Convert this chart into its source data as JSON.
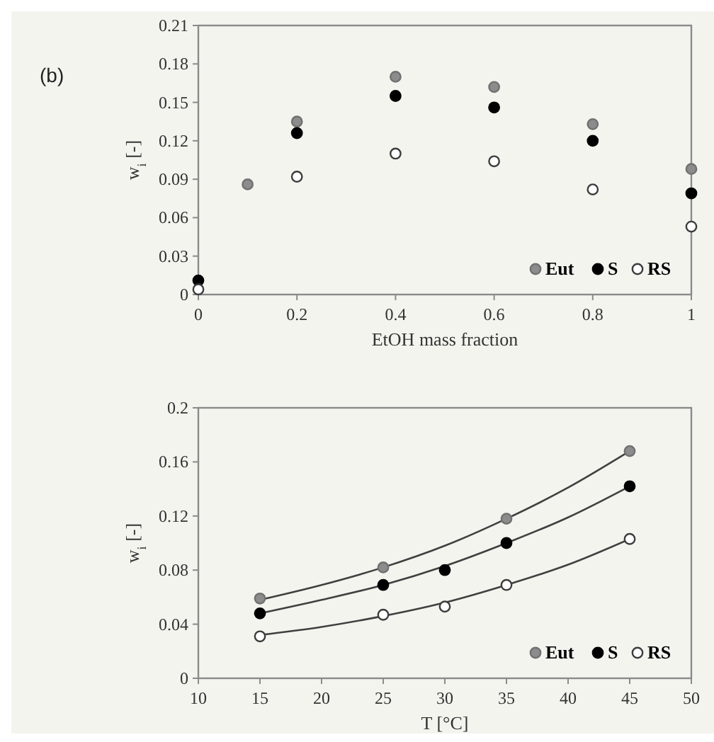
{
  "chart_data": [
    {
      "type": "scatter",
      "xlabel": "EtOH mass fraction",
      "ylabel": "w$_{i}$ [-]",
      "annotations": [
        "(b)"
      ],
      "xlim": [
        0,
        1
      ],
      "xticks": [
        0,
        0.2,
        0.4,
        0.6,
        0.8,
        1
      ],
      "ylim": [
        0,
        0.21
      ],
      "yticks": [
        0,
        0.03,
        0.06,
        0.09,
        0.12,
        0.15,
        0.18,
        0.21
      ],
      "legend": "bottom right",
      "marker": "circle",
      "grid": false,
      "series": [
        {
          "name": "Eut",
          "color": "#8c8c8c",
          "x": [
            0.1,
            0.2,
            0.4,
            0.6,
            0.8,
            1
          ],
          "values": [
            0.086,
            0.135,
            0.17,
            0.162,
            0.133,
            0.098
          ]
        },
        {
          "name": "S",
          "color": "#000000",
          "x": [
            0,
            0.2,
            0.4,
            0.6,
            0.8,
            1
          ],
          "values": [
            0.011,
            0.126,
            0.155,
            0.146,
            0.12,
            0.079
          ]
        },
        {
          "name": "RS",
          "color": "#ffffff",
          "x": [
            0,
            0.2,
            0.4,
            0.6,
            0.8,
            1
          ],
          "values": [
            0.004,
            0.092,
            0.11,
            0.104,
            0.082,
            0.053
          ]
        }
      ]
    },
    {
      "type": "scatter",
      "xlabel": "T [°C]",
      "ylabel": "w$_{i}$ [-]",
      "xlim": [
        10,
        50
      ],
      "xticks": [
        10,
        15,
        20,
        25,
        30,
        35,
        40,
        45,
        50
      ],
      "ylim": [
        0,
        0.2
      ],
      "yticks": [
        0,
        0.04,
        0.08,
        0.12,
        0.16,
        0.2
      ],
      "legend": "bottom right",
      "marker": "circle",
      "grid": false,
      "series": [
        {
          "type": "line",
          "marker": "none",
          "color": "#404040",
          "x": [
            15,
            20,
            25,
            30,
            35,
            40,
            45
          ],
          "values": [
            0.058,
            0.069,
            0.082,
            0.098,
            0.118,
            0.141,
            0.168
          ]
        },
        {
          "type": "line",
          "marker": "none",
          "color": "#404040",
          "x": [
            15,
            20,
            25,
            30,
            35,
            40,
            45
          ],
          "values": [
            0.048,
            0.058,
            0.069,
            0.083,
            0.1,
            0.119,
            0.142
          ]
        },
        {
          "type": "line",
          "marker": "none",
          "color": "#404040",
          "x": [
            15,
            20,
            25,
            30,
            35,
            40,
            45
          ],
          "values": [
            0.032,
            0.038,
            0.046,
            0.056,
            0.069,
            0.084,
            0.103
          ]
        },
        {
          "name": "Eut",
          "color": "#8c8c8c",
          "x": [
            15,
            25,
            35,
            45
          ],
          "values": [
            0.059,
            0.082,
            0.118,
            0.168
          ]
        },
        {
          "name": "S",
          "color": "#000000",
          "x": [
            15,
            25,
            30,
            35,
            45
          ],
          "values": [
            0.048,
            0.069,
            0.08,
            0.1,
            0.142
          ]
        },
        {
          "name": "RS",
          "color": "#ffffff",
          "x": [
            15,
            25,
            30,
            35,
            45
          ],
          "values": [
            0.031,
            0.047,
            0.053,
            0.069,
            0.103
          ]
        }
      ]
    }
  ]
}
